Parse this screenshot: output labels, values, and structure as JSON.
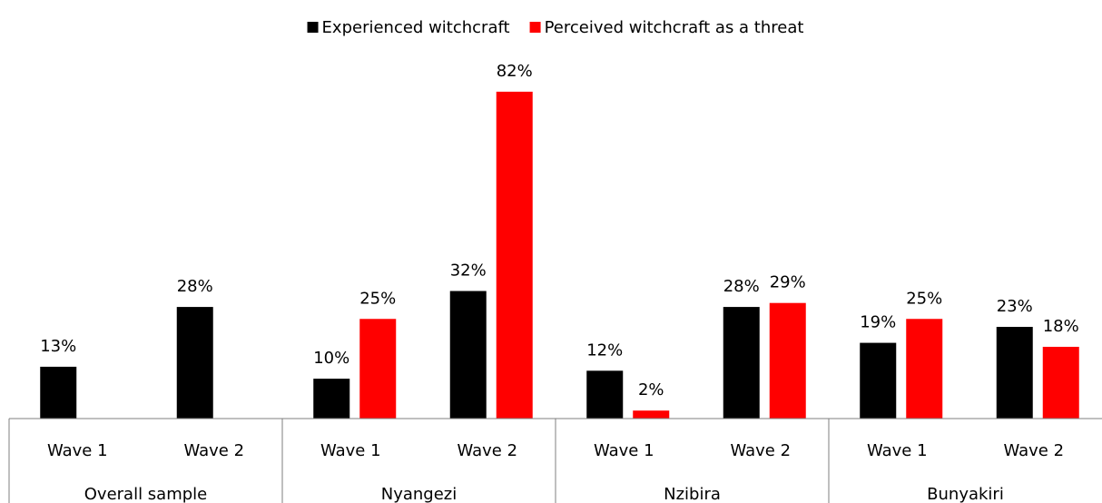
{
  "chart_data": {
    "type": "bar",
    "categories": [
      "Wave 1",
      "Wave 2",
      "Wave 1",
      "Wave 2",
      "Wave 1",
      "Wave 2",
      "Wave 1",
      "Wave 2"
    ],
    "category_groups": [
      "Overall sample",
      "Nyangezi",
      "Nzibira",
      "Bunyakiri"
    ],
    "series": [
      {
        "name": "Experienced witchcraft",
        "color": "#000000",
        "values": [
          13,
          28,
          10,
          32,
          12,
          28,
          19,
          23
        ],
        "value_labels": [
          "13%",
          "28%",
          "10%",
          "32%",
          "12%",
          "28%",
          "19%",
          "23%"
        ]
      },
      {
        "name": "Perceived witchcraft as a threat",
        "color": "#ff0000",
        "values": [
          null,
          null,
          25,
          82,
          2,
          29,
          25,
          18
        ],
        "value_labels": [
          null,
          null,
          "25%",
          "82%",
          "2%",
          "29%",
          "25%",
          "18%"
        ]
      }
    ],
    "legend": "top"
  }
}
